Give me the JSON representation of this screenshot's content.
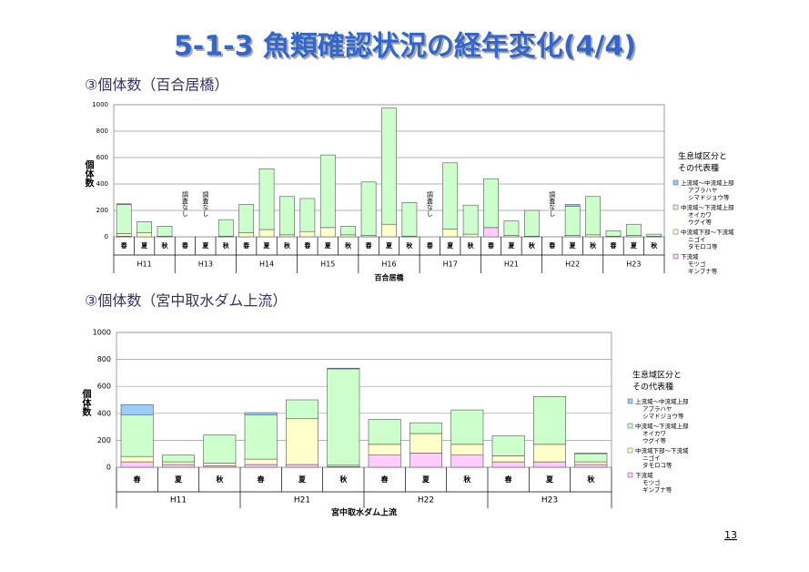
{
  "slide": {
    "title": "5-1-3  魚類確認状況の経年変化(4/4)",
    "page": "13"
  },
  "chart_data": [
    {
      "type": "stacked-bar",
      "subtitle": "③個体数（百合居橋）",
      "y_label": "個体数",
      "x_label": "百合居橋",
      "groups": [
        "H11",
        "H13",
        "H14",
        "H15",
        "H16",
        "H17",
        "H21",
        "H22",
        "H23"
      ],
      "categories": [
        "春",
        "夏",
        "秋",
        "春",
        "夏",
        "秋",
        "春",
        "夏",
        "秋",
        "春",
        "夏",
        "秋",
        "春",
        "夏",
        "秋",
        "春",
        "夏",
        "秋",
        "春",
        "夏",
        "秋",
        "春",
        "夏",
        "秋",
        "春",
        "夏",
        "秋"
      ],
      "missing_label": "調査なし",
      "ylim": [
        0,
        1000
      ],
      "yticks": [
        0,
        200,
        400,
        600,
        800,
        1000
      ],
      "grid": true,
      "legend_title": [
        "生息域区分と",
        "その代表種"
      ],
      "legend": "right",
      "series": [
        {
          "name": "上流域～中流域上部",
          "examples": [
            "アブラハヤ",
            "シマドジョウ等"
          ],
          "color": "#99ccff",
          "values": [
            5,
            0,
            0,
            null,
            null,
            0,
            0,
            0,
            0,
            0,
            0,
            0,
            0,
            0,
            0,
            null,
            0,
            0,
            0,
            0,
            0,
            null,
            15,
            0,
            0,
            0,
            0
          ]
        },
        {
          "name": "中流域～下流域上部",
          "examples": [
            "オイカワ",
            "ウグイ等"
          ],
          "color": "#ccffcc",
          "values": [
            220,
            85,
            75,
            null,
            null,
            125,
            215,
            460,
            290,
            250,
            550,
            65,
            405,
            880,
            255,
            null,
            500,
            220,
            370,
            110,
            195,
            null,
            220,
            290,
            40,
            85,
            15
          ]
        },
        {
          "name": "中流域下部～下流域",
          "examples": [
            "ニゴイ",
            "タモロコ等"
          ],
          "color": "#ffffcc",
          "values": [
            20,
            30,
            5,
            null,
            null,
            5,
            30,
            55,
            15,
            40,
            70,
            15,
            10,
            95,
            5,
            null,
            60,
            20,
            0,
            10,
            5,
            null,
            10,
            15,
            5,
            10,
            5
          ]
        },
        {
          "name": "下流域",
          "examples": [
            "モツゴ",
            "ギンブナ等"
          ],
          "color": "#ffccff",
          "values": [
            5,
            0,
            0,
            null,
            null,
            0,
            0,
            0,
            0,
            0,
            0,
            0,
            0,
            0,
            0,
            null,
            0,
            0,
            70,
            0,
            0,
            null,
            0,
            0,
            0,
            0,
            0
          ]
        }
      ]
    },
    {
      "type": "stacked-bar",
      "subtitle": "③個体数（宮中取水ダム上流）",
      "y_label": "個体数",
      "x_label": "宮中取水ダム上流",
      "groups": [
        "H11",
        "H21",
        "H22",
        "H23"
      ],
      "categories": [
        "春",
        "夏",
        "秋",
        "春",
        "夏",
        "秋",
        "春",
        "夏",
        "秋",
        "春",
        "夏",
        "秋"
      ],
      "ylim": [
        0,
        1000
      ],
      "yticks": [
        0,
        200,
        400,
        600,
        800,
        1000
      ],
      "grid": true,
      "legend_title": [
        "生息域区分と",
        "その代表種"
      ],
      "legend": "right",
      "series": [
        {
          "name": "上流域～中流域上部",
          "examples": [
            "アブラハヤ",
            "シマドジョウ等"
          ],
          "color": "#99ccff",
          "values": [
            75,
            0,
            0,
            15,
            0,
            5,
            0,
            0,
            0,
            0,
            0,
            5
          ]
        },
        {
          "name": "中流域～下流域上部",
          "examples": [
            "オイカワ",
            "ウグイ等"
          ],
          "color": "#ccffcc",
          "values": [
            310,
            50,
            210,
            330,
            140,
            715,
            185,
            80,
            255,
            150,
            355,
            60
          ]
        },
        {
          "name": "中流域下部～下流域",
          "examples": [
            "ニゴイ",
            "タモロコ等"
          ],
          "color": "#ffffcc",
          "values": [
            40,
            20,
            20,
            40,
            340,
            10,
            80,
            145,
            80,
            45,
            130,
            20
          ]
        },
        {
          "name": "下流域",
          "examples": [
            "モツゴ",
            "ギンブナ等"
          ],
          "color": "#ffccff",
          "values": [
            40,
            20,
            10,
            20,
            20,
            5,
            90,
            105,
            90,
            40,
            40,
            20
          ]
        }
      ]
    }
  ]
}
